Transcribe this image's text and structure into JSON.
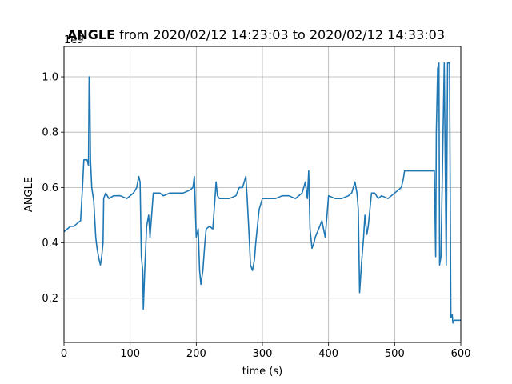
{
  "title": {
    "bold": "ANGLE",
    "rest": " from 2020/02/12 14:23:03 to 2020/02/12 14:33:03"
  },
  "colors": {
    "line": "#1f77b4",
    "grid": "#b0b0b0",
    "axis": "#000000"
  },
  "chart_data": {
    "type": "line",
    "title": "ANGLE from 2020/02/12 14:23:03 to 2020/02/12 14:33:03",
    "xlabel": "time (s)",
    "ylabel": "ANGLE",
    "y_offset_text": "1e9",
    "xlim": [
      0,
      600
    ],
    "ylim": [
      0.04,
      1.11
    ],
    "x_ticks": [
      0,
      100,
      200,
      300,
      400,
      500,
      600
    ],
    "x_tick_labels": [
      "0",
      "100",
      "200",
      "300",
      "400",
      "500",
      "600"
    ],
    "y_ticks": [
      0.2,
      0.4,
      0.6,
      0.8,
      1.0
    ],
    "y_tick_labels": [
      "0.2",
      "0.4",
      "0.6",
      "0.8",
      "1.0"
    ],
    "grid": true,
    "series": [
      {
        "x": [
          0,
          5,
          10,
          15,
          20,
          25,
          28,
          30,
          35,
          37,
          38,
          39,
          40,
          42,
          45,
          48,
          50,
          53,
          55,
          57,
          59,
          60,
          63,
          68,
          75,
          85,
          95,
          105,
          110,
          113,
          115,
          117,
          119,
          120,
          122,
          125,
          128,
          130,
          135,
          140,
          145,
          150,
          160,
          170,
          180,
          190,
          195,
          197,
          200,
          203,
          205,
          207,
          210,
          213,
          215,
          220,
          225,
          228,
          230,
          232,
          235,
          240,
          250,
          260,
          265,
          270,
          275,
          277,
          280,
          282,
          285,
          288,
          290,
          295,
          300,
          310,
          320,
          330,
          340,
          350,
          360,
          365,
          368,
          370,
          372,
          375,
          378,
          380,
          385,
          390,
          395,
          400,
          410,
          420,
          430,
          435,
          440,
          443,
          445,
          447,
          450,
          453,
          455,
          458,
          460,
          465,
          470,
          475,
          480,
          490,
          500,
          510,
          513,
          515,
          520,
          530,
          540,
          550,
          556,
          560,
          562,
          563,
          565,
          567,
          568,
          570,
          575,
          578,
          580,
          583,
          585,
          587,
          588,
          590,
          595,
          600
        ],
        "y": [
          0.44,
          0.45,
          0.46,
          0.46,
          0.47,
          0.48,
          0.6,
          0.7,
          0.7,
          0.68,
          1.0,
          0.96,
          0.7,
          0.6,
          0.55,
          0.42,
          0.38,
          0.34,
          0.32,
          0.35,
          0.4,
          0.56,
          0.58,
          0.56,
          0.57,
          0.57,
          0.56,
          0.58,
          0.6,
          0.64,
          0.62,
          0.35,
          0.3,
          0.16,
          0.3,
          0.46,
          0.5,
          0.42,
          0.58,
          0.58,
          0.58,
          0.57,
          0.58,
          0.58,
          0.58,
          0.59,
          0.6,
          0.64,
          0.42,
          0.45,
          0.3,
          0.25,
          0.3,
          0.4,
          0.45,
          0.46,
          0.45,
          0.55,
          0.62,
          0.57,
          0.56,
          0.56,
          0.56,
          0.57,
          0.6,
          0.6,
          0.64,
          0.56,
          0.42,
          0.32,
          0.3,
          0.34,
          0.4,
          0.52,
          0.56,
          0.56,
          0.56,
          0.57,
          0.57,
          0.56,
          0.58,
          0.62,
          0.56,
          0.66,
          0.45,
          0.38,
          0.4,
          0.42,
          0.45,
          0.48,
          0.42,
          0.57,
          0.56,
          0.56,
          0.57,
          0.58,
          0.62,
          0.58,
          0.52,
          0.22,
          0.33,
          0.42,
          0.5,
          0.43,
          0.46,
          0.58,
          0.58,
          0.56,
          0.57,
          0.56,
          0.58,
          0.6,
          0.63,
          0.66,
          0.66,
          0.66,
          0.66,
          0.66,
          0.66,
          0.66,
          0.35,
          0.8,
          1.03,
          1.05,
          0.32,
          0.35,
          1.05,
          0.32,
          1.05,
          1.05,
          0.13,
          0.14,
          0.11,
          0.12,
          0.12,
          0.12
        ]
      }
    ]
  }
}
